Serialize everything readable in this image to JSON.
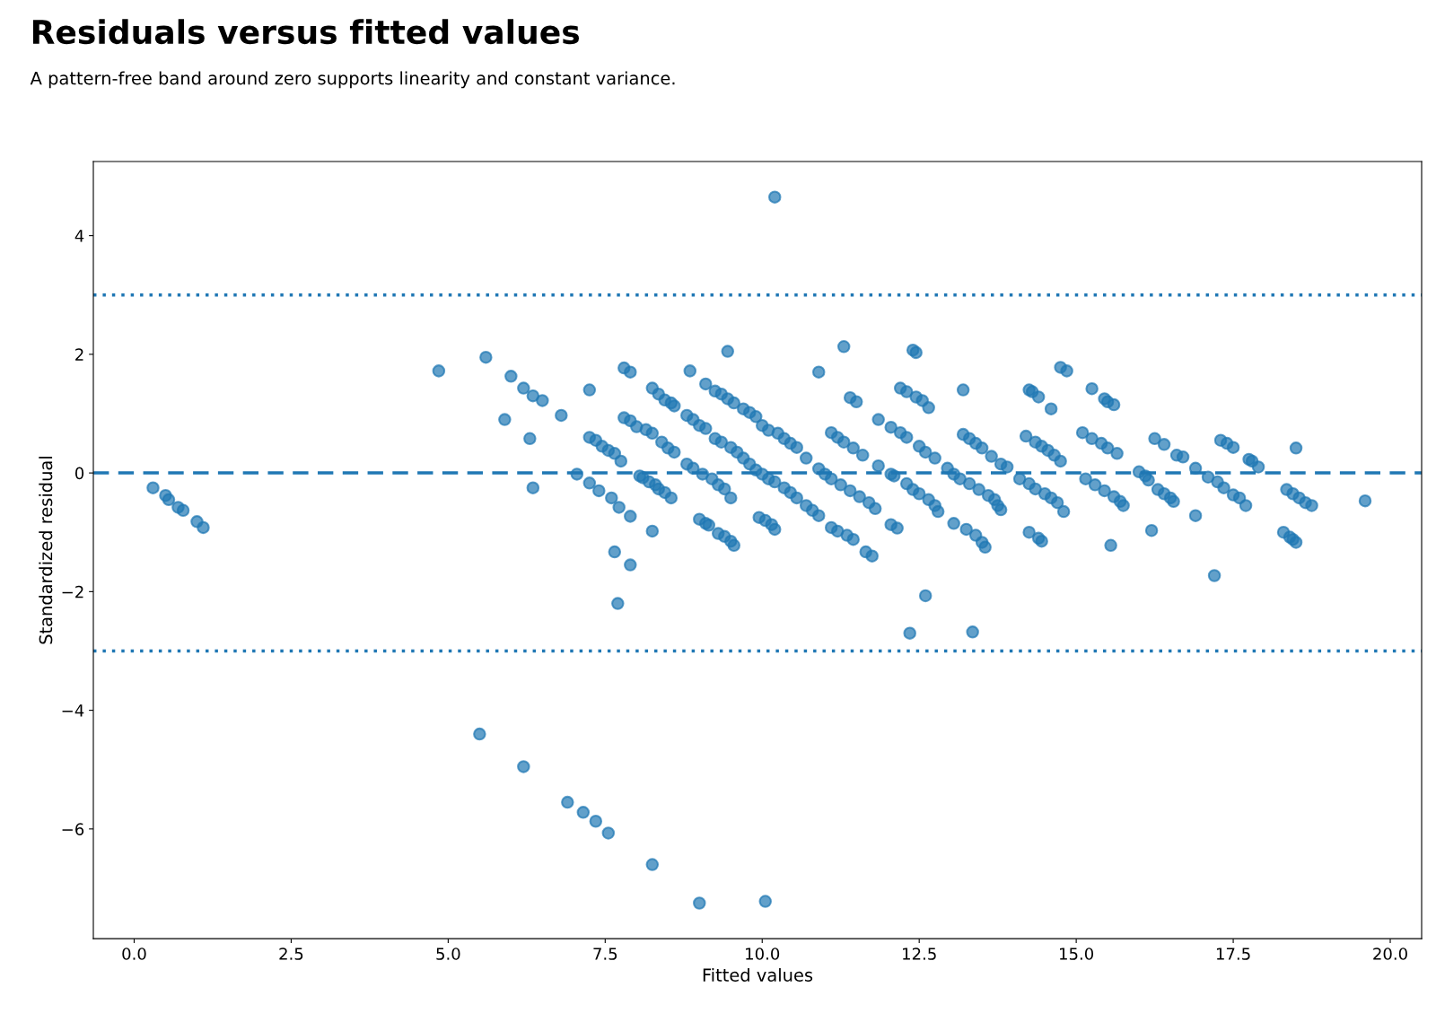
{
  "chart_data": {
    "type": "scatter",
    "title": "Residuals versus fitted values",
    "subtitle": "A pattern-free band around zero supports linearity and constant variance.",
    "xlabel": "Fitted values",
    "ylabel": "Standardized residual",
    "xlim": [
      -0.65,
      20.5
    ],
    "ylim": [
      -7.85,
      5.25
    ],
    "xticks": [
      {
        "value": 0,
        "label": "0.0"
      },
      {
        "value": 2.5,
        "label": "2.5"
      },
      {
        "value": 5,
        "label": "5.0"
      },
      {
        "value": 7.5,
        "label": "7.5"
      },
      {
        "value": 10,
        "label": "10.0"
      },
      {
        "value": 12.5,
        "label": "12.5"
      },
      {
        "value": 15,
        "label": "15.0"
      },
      {
        "value": 17.5,
        "label": "17.5"
      },
      {
        "value": 20,
        "label": "20.0"
      }
    ],
    "yticks": [
      {
        "value": -6,
        "label": "−6"
      },
      {
        "value": -4,
        "label": "−4"
      },
      {
        "value": -2,
        "label": "−2"
      },
      {
        "value": 0,
        "label": "0"
      },
      {
        "value": 2,
        "label": "2"
      },
      {
        "value": 4,
        "label": "4"
      }
    ],
    "grid": false,
    "marker": "circle",
    "ref_lines": [
      {
        "axis": "y",
        "value": 0,
        "color": "#1f77b4",
        "line_style": "dashed"
      },
      {
        "axis": "y",
        "value": 3,
        "color": "#1f77b4",
        "line_style": "dotted"
      },
      {
        "axis": "y",
        "value": -3,
        "color": "#1f77b4",
        "line_style": "dotted"
      }
    ],
    "series": [
      {
        "color": "#1f77b4",
        "x": [
          0.3,
          0.5,
          0.55,
          0.7,
          0.78,
          1.0,
          1.1,
          5.5,
          6.2,
          6.9,
          7.15,
          7.35,
          7.55,
          8.25,
          9.0,
          10.05,
          10.2,
          4.85,
          5.6,
          5.9,
          6.0,
          6.2,
          6.3,
          6.35,
          6.35,
          6.5,
          6.8,
          7.05,
          7.25,
          7.25,
          7.25,
          7.35,
          7.4,
          7.45,
          7.55,
          7.6,
          7.65,
          7.65,
          7.7,
          7.72,
          7.75,
          7.8,
          7.8,
          7.9,
          7.9,
          7.9,
          7.9,
          8.0,
          8.05,
          8.1,
          8.15,
          8.2,
          8.25,
          8.25,
          8.25,
          8.3,
          8.35,
          8.35,
          8.4,
          8.45,
          8.45,
          8.5,
          8.55,
          8.55,
          8.6,
          8.6,
          8.8,
          8.85,
          8.8,
          8.9,
          8.9,
          9.0,
          9.0,
          9.05,
          9.1,
          9.1,
          9.1,
          9.15,
          9.2,
          9.25,
          9.25,
          9.3,
          9.3,
          9.35,
          9.35,
          9.4,
          9.4,
          9.45,
          9.45,
          9.5,
          9.5,
          9.5,
          9.55,
          9.55,
          9.6,
          9.7,
          9.7,
          9.8,
          9.8,
          9.9,
          9.9,
          9.95,
          10.0,
          10.0,
          10.05,
          10.1,
          10.1,
          10.15,
          10.2,
          10.2,
          10.25,
          10.35,
          10.35,
          10.45,
          10.45,
          10.55,
          10.55,
          10.7,
          10.7,
          10.8,
          10.9,
          10.9,
          10.9,
          11.0,
          11.1,
          11.1,
          11.1,
          11.2,
          11.2,
          11.25,
          11.3,
          11.3,
          11.35,
          11.4,
          11.4,
          11.45,
          11.45,
          11.5,
          11.55,
          11.6,
          11.65,
          11.7,
          11.75,
          11.8,
          11.85,
          11.85,
          12.05,
          12.05,
          12.05,
          12.1,
          12.15,
          12.2,
          12.2,
          12.3,
          12.3,
          12.3,
          12.35,
          12.4,
          12.45,
          12.4,
          12.45,
          12.5,
          12.5,
          12.55,
          12.6,
          12.6,
          12.65,
          12.65,
          12.75,
          12.75,
          12.8,
          12.95,
          13.05,
          13.05,
          13.15,
          13.2,
          13.2,
          13.25,
          13.3,
          13.3,
          13.35,
          13.4,
          13.4,
          13.45,
          13.5,
          13.5,
          13.55,
          13.6,
          13.65,
          13.7,
          13.75,
          13.8,
          13.8,
          13.9,
          14.1,
          14.2,
          14.25,
          14.25,
          14.25,
          14.3,
          14.35,
          14.35,
          14.4,
          14.4,
          14.45,
          14.45,
          14.5,
          14.55,
          14.6,
          14.6,
          14.65,
          14.7,
          14.75,
          14.75,
          14.8,
          14.85,
          15.1,
          15.15,
          15.25,
          15.25,
          15.3,
          15.4,
          15.45,
          15.45,
          15.5,
          15.5,
          15.55,
          15.6,
          15.6,
          15.65,
          15.7,
          15.75,
          16.0,
          16.1,
          16.15,
          16.2,
          16.25,
          16.3,
          16.4,
          16.4,
          16.5,
          16.55,
          16.6,
          16.7,
          16.9,
          16.9,
          17.1,
          17.2,
          17.25,
          17.3,
          17.35,
          17.4,
          17.5,
          17.5,
          17.6,
          17.7,
          17.75,
          17.8,
          17.9,
          18.3,
          18.35,
          18.4,
          18.45,
          18.45,
          18.5,
          18.5,
          18.55,
          18.65,
          18.75,
          19.6
        ],
        "values": [
          -0.25,
          -0.38,
          -0.45,
          -0.58,
          -0.63,
          -0.82,
          -0.92,
          -4.4,
          -4.95,
          -5.55,
          -5.72,
          -5.87,
          -6.07,
          -6.6,
          -7.25,
          -7.22,
          4.65,
          1.72,
          1.95,
          0.9,
          1.63,
          1.43,
          0.58,
          -0.25,
          1.3,
          1.22,
          0.97,
          -0.02,
          -0.17,
          1.4,
          0.6,
          0.55,
          -0.3,
          0.45,
          0.38,
          -0.42,
          0.33,
          -1.33,
          -2.2,
          -0.58,
          0.2,
          1.77,
          0.93,
          0.88,
          1.7,
          -0.73,
          -1.55,
          0.78,
          -0.05,
          -0.08,
          0.73,
          -0.15,
          0.67,
          -0.98,
          1.43,
          -0.2,
          1.33,
          -0.27,
          0.52,
          1.23,
          -0.33,
          0.42,
          1.18,
          -0.42,
          0.35,
          1.13,
          0.97,
          1.72,
          0.15,
          0.9,
          0.08,
          0.8,
          -0.78,
          -0.02,
          0.75,
          -0.85,
          1.5,
          -0.88,
          -0.1,
          1.38,
          0.58,
          -1.02,
          -0.2,
          1.33,
          0.52,
          -0.27,
          -1.07,
          2.05,
          1.25,
          0.43,
          -1.15,
          -0.42,
          -1.22,
          1.18,
          0.35,
          1.08,
          0.25,
          1.02,
          0.15,
          0.95,
          0.05,
          -0.75,
          -0.02,
          0.8,
          -0.8,
          -0.1,
          0.72,
          -0.87,
          -0.95,
          -0.15,
          0.67,
          -0.25,
          0.58,
          0.5,
          -0.33,
          0.43,
          -0.42,
          0.25,
          -0.55,
          -0.63,
          1.7,
          0.07,
          -0.72,
          -0.02,
          0.68,
          -0.1,
          -0.92,
          -0.98,
          0.6,
          -0.2,
          2.13,
          0.52,
          -1.05,
          -0.3,
          1.27,
          0.42,
          -1.12,
          1.2,
          -0.4,
          0.3,
          -1.33,
          -0.5,
          -1.4,
          -0.6,
          0.9,
          0.12,
          0.77,
          -0.02,
          -0.87,
          -0.05,
          -0.93,
          1.43,
          0.68,
          1.37,
          -0.18,
          0.6,
          -2.7,
          2.07,
          2.03,
          -0.28,
          1.28,
          0.45,
          -0.35,
          1.22,
          -2.07,
          0.35,
          1.1,
          -0.45,
          0.25,
          -0.55,
          -0.65,
          0.08,
          -0.02,
          -0.85,
          -0.1,
          1.4,
          0.65,
          -0.95,
          0.58,
          -0.18,
          -2.68,
          0.5,
          -1.05,
          -0.28,
          0.42,
          -1.17,
          -1.25,
          -0.38,
          0.28,
          -0.45,
          -0.55,
          0.15,
          -0.62,
          0.1,
          -0.1,
          0.62,
          1.4,
          -0.18,
          -1.0,
          1.37,
          0.52,
          -0.27,
          -1.1,
          1.28,
          -1.15,
          0.45,
          -0.35,
          0.38,
          -0.42,
          1.08,
          0.3,
          -0.5,
          1.78,
          0.2,
          -0.65,
          1.72,
          0.68,
          -0.1,
          1.42,
          0.58,
          -0.2,
          0.5,
          1.25,
          -0.3,
          1.2,
          0.42,
          -1.22,
          1.15,
          -0.4,
          0.33,
          -0.48,
          -0.55,
          0.02,
          -0.05,
          -0.12,
          -0.97,
          0.58,
          -0.28,
          0.48,
          -0.35,
          -0.42,
          -0.48,
          0.3,
          0.27,
          0.08,
          -0.72,
          -0.07,
          -1.73,
          -0.15,
          0.55,
          -0.25,
          0.5,
          -0.37,
          0.43,
          -0.42,
          -0.55,
          0.23,
          0.2,
          0.1,
          -1.0,
          -0.28,
          -1.08,
          -0.35,
          -1.12,
          0.42,
          -1.17,
          -0.42,
          -0.5,
          -0.55,
          -0.47
        ]
      }
    ]
  }
}
